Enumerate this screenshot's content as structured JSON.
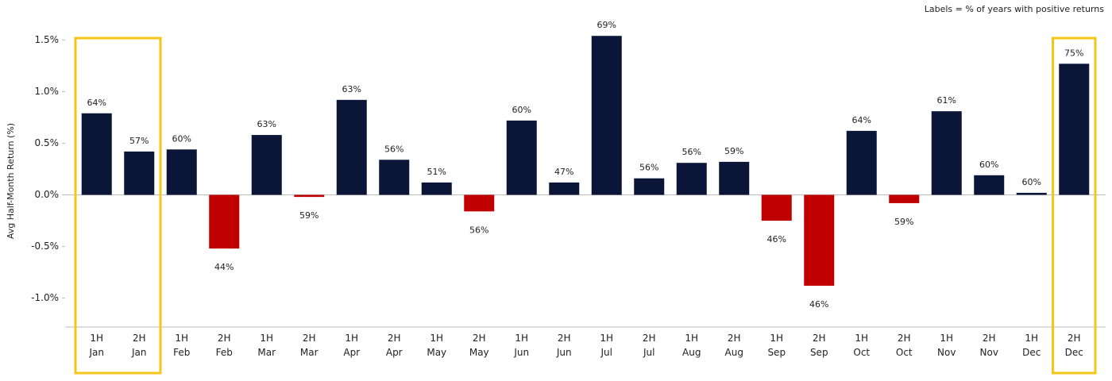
{
  "chart_data": {
    "type": "bar",
    "y_label": "Avg Half-Month Return (%)",
    "note": "Labels = % of years with positive returns",
    "categories": [
      [
        "1H",
        "Jan"
      ],
      [
        "2H",
        "Jan"
      ],
      [
        "1H",
        "Feb"
      ],
      [
        "2H",
        "Feb"
      ],
      [
        "1H",
        "Mar"
      ],
      [
        "2H",
        "Mar"
      ],
      [
        "1H",
        "Apr"
      ],
      [
        "2H",
        "Apr"
      ],
      [
        "1H",
        "May"
      ],
      [
        "2H",
        "May"
      ],
      [
        "1H",
        "Jun"
      ],
      [
        "2H",
        "Jun"
      ],
      [
        "1H",
        "Jul"
      ],
      [
        "2H",
        "Jul"
      ],
      [
        "1H",
        "Aug"
      ],
      [
        "2H",
        "Aug"
      ],
      [
        "1H",
        "Sep"
      ],
      [
        "2H",
        "Sep"
      ],
      [
        "1H",
        "Oct"
      ],
      [
        "2H",
        "Oct"
      ],
      [
        "1H",
        "Nov"
      ],
      [
        "2H",
        "Nov"
      ],
      [
        "1H",
        "Dec"
      ],
      [
        "2H",
        "Dec"
      ]
    ],
    "values": [
      0.79,
      0.42,
      0.44,
      -0.52,
      0.58,
      -0.02,
      0.92,
      0.34,
      0.12,
      -0.16,
      0.72,
      0.12,
      1.54,
      0.16,
      0.31,
      0.32,
      -0.25,
      -0.88,
      0.62,
      -0.08,
      0.81,
      0.19,
      0.02,
      1.27
    ],
    "bar_labels": [
      "64%",
      "57%",
      "60%",
      "44%",
      "63%",
      "59%",
      "63%",
      "56%",
      "51%",
      "56%",
      "60%",
      "47%",
      "69%",
      "56%",
      "56%",
      "59%",
      "46%",
      "46%",
      "64%",
      "59%",
      "61%",
      "60%",
      "60%",
      "75%"
    ],
    "positive_color": "#0a1538",
    "negative_color": "#c00000",
    "highlight_color": "#f5c518",
    "highlight_ranges": [
      [
        0,
        1
      ],
      [
        23,
        23
      ]
    ],
    "ylim": [
      -1.28,
      1.58
    ],
    "yticks": [
      {
        "value": -1.0,
        "label": "-1.0%"
      },
      {
        "value": -0.5,
        "label": "-0.5%"
      },
      {
        "value": 0,
        "label": "0.0%"
      },
      {
        "value": 0.5,
        "label": "0.5%"
      },
      {
        "value": 1.0,
        "label": "1.0%"
      },
      {
        "value": 1.5,
        "label": "1.5%"
      }
    ],
    "grid": false
  }
}
